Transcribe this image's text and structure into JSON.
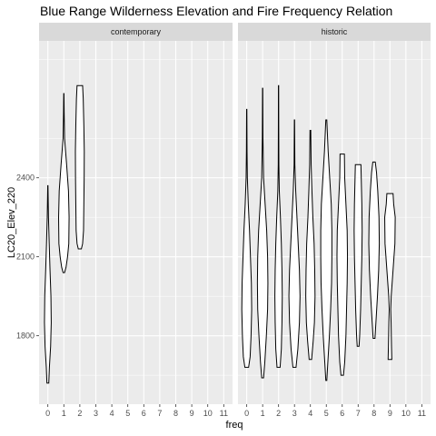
{
  "chart_data": {
    "type": "violin",
    "title": "Blue Range Wilderness Elevation and Fire Frequency Relation",
    "xlabel": "freq",
    "ylabel": "LC20_Elev_220",
    "x_ticks": [
      0,
      1,
      2,
      3,
      4,
      5,
      6,
      7,
      8,
      9,
      10,
      11
    ],
    "y_ticks": [
      1800,
      2100,
      2400
    ],
    "xlim": [
      -0.55,
      11.55
    ],
    "ylim": [
      1540,
      2920
    ],
    "grid": true,
    "colors": {
      "panel": "#ebebeb",
      "strip": "#d9d9d9",
      "gridline": "#ffffff",
      "violin_fill": "#ffffff",
      "violin_stroke": "#000000"
    },
    "panels": [
      {
        "label": "contemporary",
        "violins": [
          {
            "freq": 0,
            "min": 1620,
            "max": 2370,
            "profile": [
              [
                1620,
                0.15
              ],
              [
                1680,
                0.25
              ],
              [
                1760,
                0.45
              ],
              [
                1850,
                0.55
              ],
              [
                1950,
                0.5
              ],
              [
                2050,
                0.35
              ],
              [
                2150,
                0.22
              ],
              [
                2250,
                0.1
              ],
              [
                2370,
                0.02
              ]
            ]
          },
          {
            "freq": 1,
            "min": 2040,
            "max": 2720,
            "profile": [
              [
                2040,
                0.12
              ],
              [
                2060,
                0.35
              ],
              [
                2100,
                0.6
              ],
              [
                2150,
                0.8
              ],
              [
                2250,
                0.85
              ],
              [
                2350,
                0.75
              ],
              [
                2450,
                0.45
              ],
              [
                2550,
                0.12
              ],
              [
                2650,
                0.05
              ],
              [
                2720,
                0.02
              ]
            ]
          },
          {
            "freq": 2,
            "min": 2130,
            "max": 2750,
            "profile": [
              [
                2130,
                0.25
              ],
              [
                2150,
                0.45
              ],
              [
                2200,
                0.6
              ],
              [
                2300,
                0.65
              ],
              [
                2400,
                0.7
              ],
              [
                2500,
                0.72
              ],
              [
                2600,
                0.65
              ],
              [
                2700,
                0.55
              ],
              [
                2750,
                0.45
              ]
            ]
          }
        ]
      },
      {
        "label": "historic",
        "violins": [
          {
            "freq": 0,
            "min": 1680,
            "max": 2660,
            "profile": [
              [
                1680,
                0.3
              ],
              [
                1720,
                0.55
              ],
              [
                1800,
                0.7
              ],
              [
                1900,
                0.8
              ],
              [
                2000,
                0.75
              ],
              [
                2100,
                0.6
              ],
              [
                2200,
                0.45
              ],
              [
                2300,
                0.25
              ],
              [
                2400,
                0.1
              ],
              [
                2500,
                0.05
              ],
              [
                2660,
                0.02
              ]
            ]
          },
          {
            "freq": 1,
            "min": 1640,
            "max": 2740,
            "profile": [
              [
                1640,
                0.15
              ],
              [
                1700,
                0.35
              ],
              [
                1800,
                0.6
              ],
              [
                1900,
                0.8
              ],
              [
                2000,
                0.85
              ],
              [
                2100,
                0.8
              ],
              [
                2200,
                0.65
              ],
              [
                2300,
                0.4
              ],
              [
                2400,
                0.15
              ],
              [
                2550,
                0.05
              ],
              [
                2740,
                0.02
              ]
            ]
          },
          {
            "freq": 2,
            "min": 1680,
            "max": 2750,
            "profile": [
              [
                1680,
                0.25
              ],
              [
                1750,
                0.45
              ],
              [
                1850,
                0.55
              ],
              [
                1950,
                0.6
              ],
              [
                2050,
                0.55
              ],
              [
                2150,
                0.45
              ],
              [
                2250,
                0.3
              ],
              [
                2350,
                0.12
              ],
              [
                2450,
                0.05
              ],
              [
                2600,
                0.03
              ],
              [
                2750,
                0.02
              ]
            ]
          },
          {
            "freq": 3,
            "min": 1680,
            "max": 2620,
            "profile": [
              [
                1680,
                0.25
              ],
              [
                1750,
                0.55
              ],
              [
                1850,
                0.8
              ],
              [
                1950,
                0.9
              ],
              [
                2050,
                0.8
              ],
              [
                2150,
                0.6
              ],
              [
                2250,
                0.4
              ],
              [
                2350,
                0.2
              ],
              [
                2450,
                0.06
              ],
              [
                2620,
                0.02
              ]
            ]
          },
          {
            "freq": 4,
            "min": 1710,
            "max": 2580,
            "profile": [
              [
                1710,
                0.2
              ],
              [
                1780,
                0.45
              ],
              [
                1850,
                0.65
              ],
              [
                1950,
                0.75
              ],
              [
                2050,
                0.7
              ],
              [
                2150,
                0.6
              ],
              [
                2250,
                0.4
              ],
              [
                2350,
                0.25
              ],
              [
                2450,
                0.12
              ],
              [
                2580,
                0.06
              ]
            ]
          },
          {
            "freq": 5,
            "min": 1630,
            "max": 2620,
            "profile": [
              [
                1630,
                0.08
              ],
              [
                1700,
                0.25
              ],
              [
                1800,
                0.5
              ],
              [
                1900,
                0.7
              ],
              [
                2000,
                0.85
              ],
              [
                2100,
                0.9
              ],
              [
                2200,
                0.9
              ],
              [
                2300,
                0.8
              ],
              [
                2400,
                0.55
              ],
              [
                2500,
                0.3
              ],
              [
                2620,
                0.08
              ]
            ]
          },
          {
            "freq": 6,
            "min": 1650,
            "max": 2490,
            "profile": [
              [
                1650,
                0.2
              ],
              [
                1700,
                0.4
              ],
              [
                1800,
                0.6
              ],
              [
                1900,
                0.7
              ],
              [
                2000,
                0.8
              ],
              [
                2100,
                0.85
              ],
              [
                2200,
                0.8
              ],
              [
                2300,
                0.6
              ],
              [
                2400,
                0.4
              ],
              [
                2490,
                0.35
              ]
            ]
          },
          {
            "freq": 7,
            "min": 1760,
            "max": 2450,
            "profile": [
              [
                1760,
                0.15
              ],
              [
                1800,
                0.25
              ],
              [
                1900,
                0.4
              ],
              [
                2000,
                0.5
              ],
              [
                2100,
                0.6
              ],
              [
                2200,
                0.65
              ],
              [
                2300,
                0.6
              ],
              [
                2400,
                0.5
              ],
              [
                2450,
                0.45
              ]
            ]
          },
          {
            "freq": 8,
            "min": 1790,
            "max": 2460,
            "profile": [
              [
                1790,
                0.15
              ],
              [
                1850,
                0.3
              ],
              [
                1950,
                0.55
              ],
              [
                2050,
                0.75
              ],
              [
                2150,
                0.85
              ],
              [
                2250,
                0.8
              ],
              [
                2350,
                0.6
              ],
              [
                2420,
                0.4
              ],
              [
                2460,
                0.2
              ]
            ]
          },
          {
            "freq": 9,
            "min": 1710,
            "max": 2340,
            "profile": [
              [
                1710,
                0.3
              ],
              [
                1760,
                0.25
              ],
              [
                1850,
                0.18
              ],
              [
                1900,
                0.12
              ],
              [
                1950,
                0.2
              ],
              [
                2050,
                0.5
              ],
              [
                2150,
                0.8
              ],
              [
                2250,
                0.85
              ],
              [
                2300,
                0.6
              ],
              [
                2340,
                0.5
              ]
            ]
          }
        ]
      }
    ]
  }
}
